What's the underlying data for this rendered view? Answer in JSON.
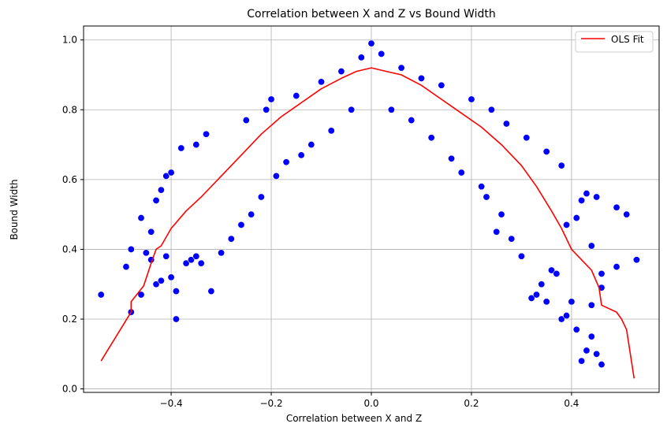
{
  "chart_data": {
    "type": "scatter",
    "title": "Correlation between X and Z vs Bound Width",
    "xlabel": "Correlation between X and Z",
    "ylabel": "Bound Width",
    "xlim": [
      -0.575,
      0.575
    ],
    "ylim": [
      -0.01,
      1.04
    ],
    "xticks": [
      -0.4,
      -0.2,
      0.0,
      0.2,
      0.4
    ],
    "xtick_labels": [
      "−0.4",
      "−0.2",
      "0.0",
      "0.2",
      "0.4"
    ],
    "yticks": [
      0.0,
      0.2,
      0.4,
      0.6,
      0.8,
      1.0
    ],
    "ytick_labels": [
      "0.0",
      "0.2",
      "0.4",
      "0.6",
      "0.8",
      "1.0"
    ],
    "grid": true,
    "legend": {
      "position": "top-right",
      "entries": [
        "OLS Fit"
      ]
    },
    "series": [
      {
        "kind": "scatter",
        "color": "#0000ff",
        "points": [
          [
            -0.54,
            0.27
          ],
          [
            -0.49,
            0.35
          ],
          [
            -0.48,
            0.22
          ],
          [
            -0.48,
            0.4
          ],
          [
            -0.46,
            0.27
          ],
          [
            -0.46,
            0.49
          ],
          [
            -0.45,
            0.39
          ],
          [
            -0.44,
            0.37
          ],
          [
            -0.44,
            0.45
          ],
          [
            -0.43,
            0.3
          ],
          [
            -0.42,
            0.31
          ],
          [
            -0.43,
            0.54
          ],
          [
            -0.42,
            0.57
          ],
          [
            -0.41,
            0.61
          ],
          [
            -0.4,
            0.62
          ],
          [
            -0.41,
            0.38
          ],
          [
            -0.4,
            0.32
          ],
          [
            -0.39,
            0.28
          ],
          [
            -0.39,
            0.2
          ],
          [
            -0.38,
            0.69
          ],
          [
            -0.37,
            0.36
          ],
          [
            -0.36,
            0.37
          ],
          [
            -0.35,
            0.38
          ],
          [
            -0.35,
            0.7
          ],
          [
            -0.34,
            0.36
          ],
          [
            -0.33,
            0.73
          ],
          [
            -0.32,
            0.28
          ],
          [
            -0.3,
            0.39
          ],
          [
            -0.28,
            0.43
          ],
          [
            -0.26,
            0.47
          ],
          [
            -0.25,
            0.77
          ],
          [
            -0.24,
            0.5
          ],
          [
            -0.22,
            0.55
          ],
          [
            -0.21,
            0.8
          ],
          [
            -0.2,
            0.83
          ],
          [
            -0.19,
            0.61
          ],
          [
            -0.17,
            0.65
          ],
          [
            -0.15,
            0.84
          ],
          [
            -0.14,
            0.67
          ],
          [
            -0.12,
            0.7
          ],
          [
            -0.1,
            0.88
          ],
          [
            -0.08,
            0.74
          ],
          [
            -0.06,
            0.91
          ],
          [
            -0.04,
            0.8
          ],
          [
            -0.02,
            0.95
          ],
          [
            0.0,
            0.99
          ],
          [
            0.02,
            0.96
          ],
          [
            0.04,
            0.8
          ],
          [
            0.06,
            0.92
          ],
          [
            0.08,
            0.77
          ],
          [
            0.1,
            0.89
          ],
          [
            0.12,
            0.72
          ],
          [
            0.14,
            0.87
          ],
          [
            0.16,
            0.66
          ],
          [
            0.18,
            0.62
          ],
          [
            0.2,
            0.83
          ],
          [
            0.22,
            0.58
          ],
          [
            0.23,
            0.55
          ],
          [
            0.24,
            0.8
          ],
          [
            0.25,
            0.45
          ],
          [
            0.26,
            0.5
          ],
          [
            0.27,
            0.76
          ],
          [
            0.28,
            0.43
          ],
          [
            0.3,
            0.38
          ],
          [
            0.31,
            0.72
          ],
          [
            0.32,
            0.26
          ],
          [
            0.33,
            0.27
          ],
          [
            0.34,
            0.3
          ],
          [
            0.35,
            0.25
          ],
          [
            0.35,
            0.68
          ],
          [
            0.36,
            0.34
          ],
          [
            0.37,
            0.33
          ],
          [
            0.38,
            0.2
          ],
          [
            0.38,
            0.64
          ],
          [
            0.39,
            0.21
          ],
          [
            0.39,
            0.47
          ],
          [
            0.4,
            0.25
          ],
          [
            0.41,
            0.17
          ],
          [
            0.41,
            0.49
          ],
          [
            0.42,
            0.08
          ],
          [
            0.42,
            0.54
          ],
          [
            0.43,
            0.11
          ],
          [
            0.43,
            0.56
          ],
          [
            0.44,
            0.15
          ],
          [
            0.45,
            0.1
          ],
          [
            0.46,
            0.07
          ],
          [
            0.46,
            0.33
          ],
          [
            0.44,
            0.41
          ],
          [
            0.45,
            0.55
          ],
          [
            0.49,
            0.35
          ],
          [
            0.49,
            0.52
          ],
          [
            0.51,
            0.5
          ],
          [
            0.53,
            0.37
          ],
          [
            0.46,
            0.29
          ],
          [
            0.44,
            0.24
          ]
        ]
      },
      {
        "kind": "line",
        "name": "OLS Fit",
        "color": "#ff0000",
        "points": [
          [
            -0.54,
            0.08
          ],
          [
            -0.48,
            0.22
          ],
          [
            -0.48,
            0.25
          ],
          [
            -0.455,
            0.295
          ],
          [
            -0.44,
            0.36
          ],
          [
            -0.43,
            0.4
          ],
          [
            -0.42,
            0.41
          ],
          [
            -0.4,
            0.46
          ],
          [
            -0.37,
            0.51
          ],
          [
            -0.34,
            0.55
          ],
          [
            -0.3,
            0.61
          ],
          [
            -0.26,
            0.67
          ],
          [
            -0.22,
            0.73
          ],
          [
            -0.18,
            0.78
          ],
          [
            -0.14,
            0.82
          ],
          [
            -0.1,
            0.86
          ],
          [
            -0.06,
            0.89
          ],
          [
            -0.03,
            0.91
          ],
          [
            0.0,
            0.92
          ],
          [
            0.03,
            0.91
          ],
          [
            0.06,
            0.9
          ],
          [
            0.1,
            0.87
          ],
          [
            0.14,
            0.83
          ],
          [
            0.18,
            0.79
          ],
          [
            0.22,
            0.75
          ],
          [
            0.26,
            0.7
          ],
          [
            0.3,
            0.64
          ],
          [
            0.33,
            0.58
          ],
          [
            0.36,
            0.51
          ],
          [
            0.38,
            0.46
          ],
          [
            0.4,
            0.4
          ],
          [
            0.42,
            0.37
          ],
          [
            0.44,
            0.34
          ],
          [
            0.455,
            0.29
          ],
          [
            0.46,
            0.24
          ],
          [
            0.49,
            0.22
          ],
          [
            0.5,
            0.2
          ],
          [
            0.51,
            0.17
          ],
          [
            0.525,
            0.03
          ]
        ]
      }
    ]
  }
}
